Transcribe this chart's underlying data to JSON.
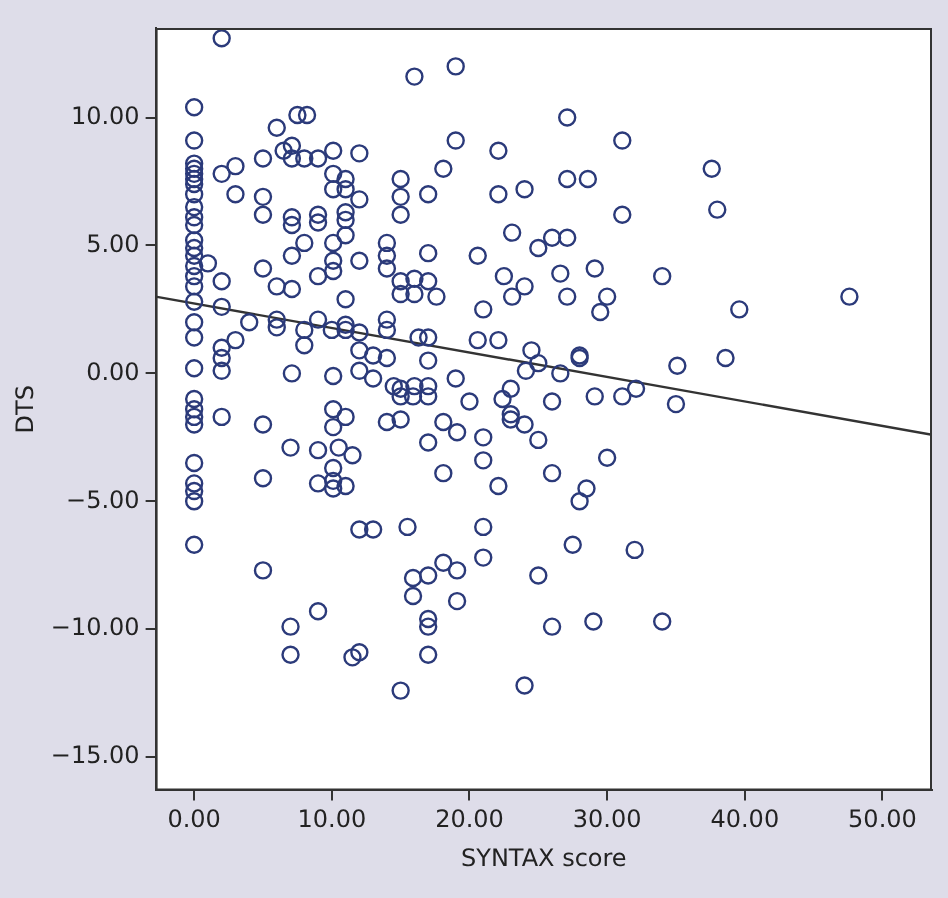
{
  "chart_data": {
    "type": "scatter",
    "xlabel": "SYNTAX score",
    "ylabel": "DTS",
    "xlim": [
      -2.8,
      53.6
    ],
    "ylim": [
      -16.3,
      13.5
    ],
    "xticks": [
      {
        "value": 0,
        "label": "0.00"
      },
      {
        "value": 10,
        "label": "10.00"
      },
      {
        "value": 20,
        "label": "20.00"
      },
      {
        "value": 30,
        "label": "30.00"
      },
      {
        "value": 40,
        "label": "40.00"
      },
      {
        "value": 50,
        "label": "50.00"
      }
    ],
    "yticks": [
      {
        "value": -15,
        "label": "−15.00"
      },
      {
        "value": -10,
        "label": "−10.00"
      },
      {
        "value": -5,
        "label": "−5.00"
      },
      {
        "value": 0,
        "label": "0.00"
      },
      {
        "value": 5,
        "label": "5.00"
      },
      {
        "value": 10,
        "label": "10.00"
      }
    ],
    "grid": false,
    "legend": false,
    "series": [
      {
        "marker": "circle",
        "color": "#2b3a7a",
        "x": [
          2.0,
          16.0,
          0,
          7.5,
          8.2,
          6.0,
          0,
          0,
          0,
          0,
          0,
          0,
          3.0,
          2.0,
          5.0,
          6.5,
          7.1,
          7.1,
          8.0,
          9.0,
          10.1,
          12.0,
          3.0,
          0,
          0,
          0,
          0,
          5.0,
          5.0,
          10.1,
          11.0,
          10.1,
          11.0,
          12.0,
          7.1,
          7.1,
          9.0,
          9.0,
          11.0,
          11.0,
          11.0,
          15.0,
          15.0,
          15.0,
          0,
          0,
          0,
          8.0,
          10.1,
          10.1,
          10.1,
          7.1,
          14.0,
          14.0,
          14.0,
          1.0,
          0,
          0,
          0,
          5.0,
          9.0,
          12.0,
          2.0,
          6.0,
          7.1,
          0,
          2.0,
          11.0,
          15.0,
          16.0,
          15.0,
          16.0,
          14.0,
          14.0,
          4.0,
          6.0,
          6.0,
          0,
          0,
          8.0,
          8.0,
          9.0,
          10.0,
          11.0,
          11.0,
          12.0,
          16.3,
          2.0,
          3.0,
          2.0,
          2.0,
          12.0,
          13.0,
          14.0,
          0,
          7.1,
          10.1,
          12.0,
          13.0,
          14.5,
          15.0,
          16.0,
          0,
          0,
          0,
          0,
          2.0,
          5.0,
          10.1,
          10.1,
          11.0,
          14.0,
          15.0,
          15.9,
          15.0,
          7.0,
          9.0,
          10.5,
          11.5,
          10.1,
          0,
          0,
          0,
          0,
          5.0,
          9.0,
          10.1,
          10.1,
          11.0,
          12.0,
          13.0,
          15.5,
          0,
          5.0,
          15.9,
          15.9,
          9.0,
          7.0,
          7.0,
          12.0,
          11.5,
          15.0,
          19.0,
          27.1,
          19.0,
          22.1,
          18.1,
          31.1,
          37.6,
          38.0,
          17.0,
          22.1,
          24.0,
          27.1,
          28.6,
          31.1,
          23.1,
          17.0,
          25.0,
          26.0,
          27.1,
          20.6,
          22.5,
          24.0,
          23.1,
          26.6,
          27.1,
          29.1,
          17.0,
          17.6,
          30.0,
          29.5,
          34.0,
          39.6,
          47.6,
          21.0,
          17.0,
          17.0,
          20.6,
          22.1,
          24.5,
          25.0,
          24.1,
          26.6,
          28.0,
          28.0,
          19.0,
          35.1,
          38.6,
          32.1,
          31.1,
          29.1,
          17.0,
          17.0,
          23.0,
          22.4,
          20.0,
          26.0,
          35.0,
          23.0,
          23.0,
          24.0,
          25.0,
          18.1,
          19.1,
          17.0,
          21.0,
          21.0,
          18.1,
          22.1,
          26.0,
          30.0,
          28.5,
          28.0,
          21.0,
          21.0,
          27.5,
          32.0,
          18.1,
          19.1,
          17.0,
          25.0,
          19.1,
          17.0,
          17.0,
          17.0,
          26.0,
          29.0,
          34.0,
          24.0
        ],
        "values": [
          13.1,
          11.6,
          10.4,
          10.1,
          10.1,
          9.6,
          9.1,
          8.2,
          8.0,
          7.8,
          7.6,
          7.4,
          8.1,
          7.8,
          8.4,
          8.7,
          8.9,
          8.4,
          8.4,
          8.4,
          8.7,
          8.6,
          7.0,
          7.0,
          6.5,
          6.1,
          5.8,
          6.9,
          6.2,
          7.8,
          7.6,
          7.2,
          7.2,
          6.8,
          6.1,
          5.8,
          6.2,
          5.9,
          6.3,
          6.0,
          5.4,
          7.6,
          6.9,
          6.2,
          5.2,
          4.9,
          4.6,
          5.1,
          5.1,
          4.4,
          4.0,
          4.6,
          5.1,
          4.6,
          4.1,
          4.3,
          4.2,
          3.8,
          3.4,
          4.1,
          3.8,
          4.4,
          3.6,
          3.4,
          3.3,
          2.8,
          2.6,
          2.9,
          3.6,
          3.7,
          3.1,
          3.1,
          2.1,
          1.7,
          2.0,
          2.1,
          1.8,
          2.0,
          1.4,
          1.7,
          1.1,
          2.1,
          1.7,
          1.9,
          1.7,
          1.6,
          1.4,
          1.0,
          1.3,
          0.6,
          0.1,
          0.9,
          0.7,
          0.6,
          0.2,
          0.0,
          -0.1,
          0.1,
          -0.2,
          -0.5,
          -0.6,
          -0.5,
          -1.0,
          -1.4,
          -1.7,
          -2.0,
          -1.7,
          -2.0,
          -1.4,
          -2.1,
          -1.7,
          -1.9,
          -1.8,
          -0.9,
          -0.9,
          -2.9,
          -3.0,
          -2.9,
          -3.2,
          -3.7,
          -3.5,
          -4.3,
          -4.6,
          -5.0,
          -4.1,
          -4.3,
          -4.2,
          -4.5,
          -4.4,
          -6.1,
          -6.1,
          -6.0,
          -6.7,
          -7.7,
          -8.0,
          -8.7,
          -9.3,
          -9.9,
          -11.0,
          -10.9,
          -11.1,
          -12.4,
          12.0,
          10.0,
          9.1,
          8.7,
          8.0,
          9.1,
          8.0,
          6.4,
          7.0,
          7.0,
          7.2,
          7.6,
          7.6,
          6.2,
          5.5,
          4.7,
          4.9,
          5.3,
          5.3,
          4.6,
          3.8,
          3.4,
          3.0,
          3.9,
          3.0,
          4.1,
          3.6,
          3.0,
          3.0,
          2.4,
          3.8,
          2.5,
          3.0,
          2.5,
          1.4,
          0.5,
          1.3,
          1.3,
          0.9,
          0.4,
          0.1,
          0.0,
          0.7,
          0.6,
          -0.2,
          0.3,
          0.6,
          -0.6,
          -0.9,
          -0.9,
          -0.5,
          -0.9,
          -0.6,
          -1.0,
          -1.1,
          -1.1,
          -1.2,
          -1.6,
          -1.8,
          -2.0,
          -2.6,
          -1.9,
          -2.3,
          -2.7,
          -2.5,
          -3.4,
          -3.9,
          -4.4,
          -3.9,
          -3.3,
          -4.5,
          -5.0,
          -6.0,
          -7.2,
          -6.7,
          -6.9,
          -7.4,
          -7.7,
          -7.9,
          -7.9,
          -8.9,
          -9.6,
          -9.9,
          -11.0,
          -9.9,
          -9.7,
          -9.7,
          -12.2
        ]
      },
      {
        "type": "line",
        "marker": "none",
        "color": "#333333",
        "x": [
          -2.8,
          53.6
        ],
        "values": [
          3.0,
          -2.4
        ]
      }
    ]
  }
}
